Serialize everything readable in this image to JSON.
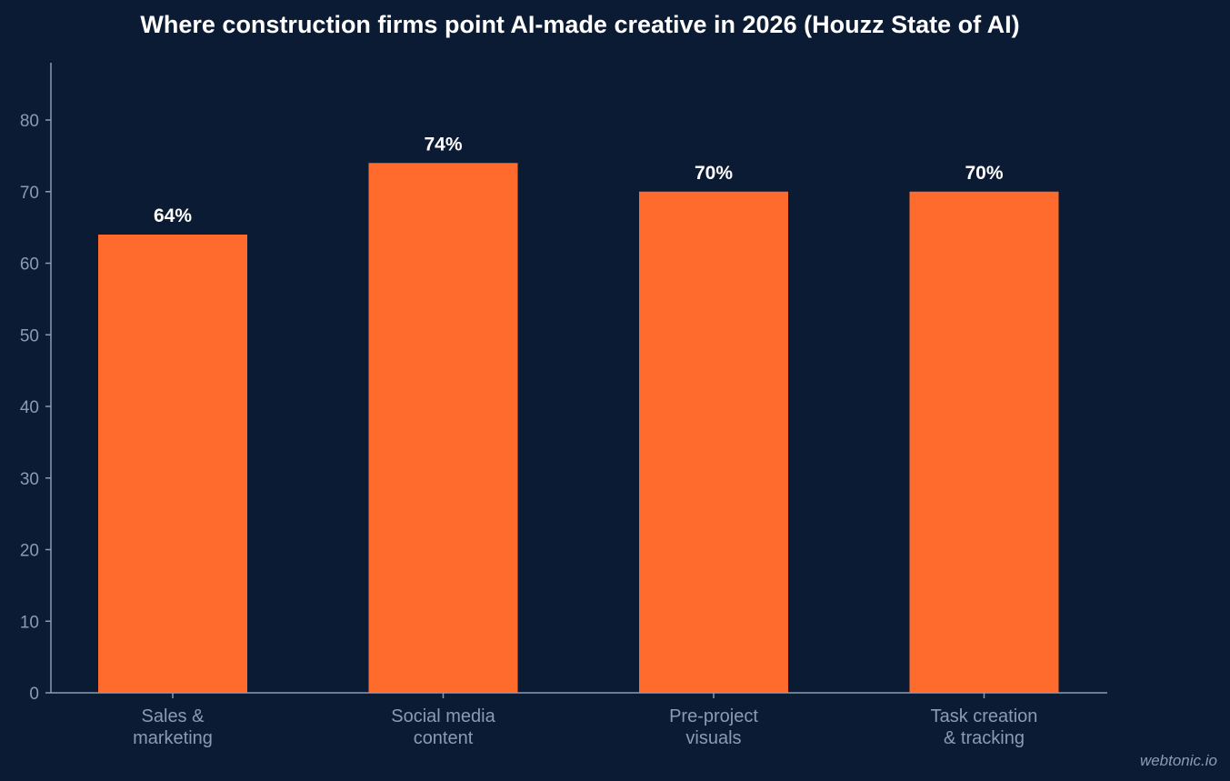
{
  "chart_data": {
    "type": "bar",
    "title": "Where construction firms point AI-made creative in 2026 (Houzz State of AI)",
    "categories": [
      [
        "Sales &",
        "marketing"
      ],
      [
        "Social media",
        "content"
      ],
      [
        "Pre-project",
        "visuals"
      ],
      [
        "Task creation",
        "& tracking"
      ]
    ],
    "values": [
      64,
      74,
      70,
      70
    ],
    "value_labels": [
      "64%",
      "74%",
      "70%",
      "70%"
    ],
    "xlabel": "",
    "ylabel": "",
    "ylim": [
      0,
      88
    ],
    "yticks": [
      0,
      10,
      20,
      30,
      40,
      50,
      60,
      70,
      80
    ],
    "grid": false,
    "bar_color": "#ff6b2c",
    "background_color": "#0b1b33",
    "axis_color": "#8a9bb3"
  },
  "watermark": "webtonic.io"
}
